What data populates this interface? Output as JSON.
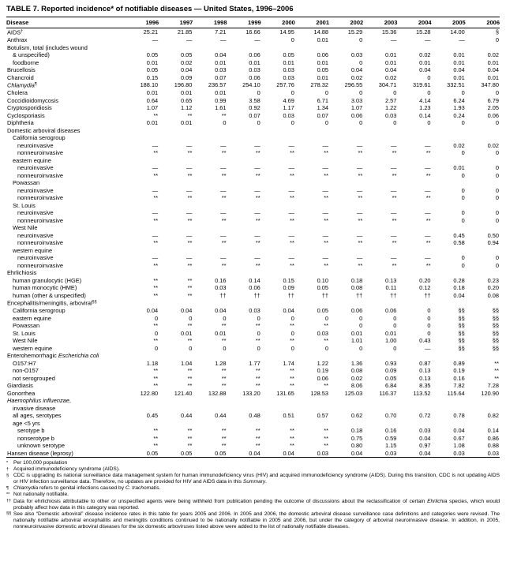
{
  "title": "TABLE 7. Reported incidence* of notifiable diseases — United States, 1996–2006",
  "table": {
    "disease_header": "Disease",
    "year_headers": [
      "1996",
      "1997",
      "1998",
      "1999",
      "2000",
      "2001",
      "2002",
      "2003",
      "2004",
      "2005",
      "2006"
    ],
    "rows": [
      {
        "label": [
          {
            "t": "AIDS"
          },
          {
            "t": "†",
            "sup": true
          }
        ],
        "indent": 0,
        "values": [
          "25.21",
          "21.85",
          "7.21",
          "16.66",
          "14.95",
          "14.88",
          "15.29",
          "15.36",
          "15.28",
          "14.00",
          "§"
        ]
      },
      {
        "label": [
          {
            "t": "Anthrax"
          }
        ],
        "indent": 0,
        "values": [
          "—",
          "—",
          "—",
          "—",
          "0",
          "0.01",
          "0",
          "—",
          "—",
          "—",
          "0"
        ]
      },
      {
        "label": [
          {
            "t": "Botulism, total (includes wound"
          }
        ],
        "indent": 0,
        "values": null
      },
      {
        "label": [
          {
            "t": "& unspecified)"
          }
        ],
        "indent": 1,
        "values": [
          "0.05",
          "0.05",
          "0.04",
          "0.06",
          "0.05",
          "0.06",
          "0.03",
          "0.01",
          "0.02",
          "0.01",
          "0.02"
        ]
      },
      {
        "label": [
          {
            "t": "foodborne"
          }
        ],
        "indent": 1,
        "values": [
          "0.01",
          "0.02",
          "0.01",
          "0.01",
          "0.01",
          "0.01",
          "0",
          "0.01",
          "0.01",
          "0.01",
          "0.01"
        ]
      },
      {
        "label": [
          {
            "t": "Brucellosis"
          }
        ],
        "indent": 0,
        "values": [
          "0.05",
          "0.04",
          "0.03",
          "0.03",
          "0.03",
          "0.05",
          "0.04",
          "0.04",
          "0.04",
          "0.04",
          "0.04"
        ]
      },
      {
        "label": [
          {
            "t": "Chancroid"
          }
        ],
        "indent": 0,
        "values": [
          "0.15",
          "0.09",
          "0.07",
          "0.06",
          "0.03",
          "0.01",
          "0.02",
          "0.02",
          "0",
          "0.01",
          "0.01"
        ]
      },
      {
        "label": [
          {
            "t": "Chlamydia",
            "it": true
          },
          {
            "t": "¶",
            "sup": true
          }
        ],
        "indent": 0,
        "values": [
          "188.10",
          "196.80",
          "236.57",
          "254.10",
          "257.76",
          "278.32",
          "296.55",
          "304.71",
          "319.61",
          "332.51",
          "347.80"
        ]
      },
      {
        "label": [
          {
            "t": "Cholera"
          }
        ],
        "indent": 0,
        "values": [
          "0.01",
          "0.01",
          "0.01",
          "0",
          "0",
          "0",
          "0",
          "0",
          "0",
          "0",
          "0"
        ]
      },
      {
        "label": [
          {
            "t": "Coccidioidomycosis"
          }
        ],
        "indent": 0,
        "values": [
          "0.64",
          "0.65",
          "0.99",
          "3.58",
          "4.69",
          "6.71",
          "3.03",
          "2.57",
          "4.14",
          "6.24",
          "6.79"
        ]
      },
      {
        "label": [
          {
            "t": "Cryptosporidiosis"
          }
        ],
        "indent": 0,
        "values": [
          "1.07",
          "1.12",
          "1.61",
          "0.92",
          "1.17",
          "1.34",
          "1.07",
          "1.22",
          "1.23",
          "1.93",
          "2.05"
        ]
      },
      {
        "label": [
          {
            "t": "Cyclosporiasis"
          }
        ],
        "indent": 0,
        "values": [
          "**",
          "**",
          "**",
          "0.07",
          "0.03",
          "0.07",
          "0.06",
          "0.03",
          "0.14",
          "0.24",
          "0.06"
        ]
      },
      {
        "label": [
          {
            "t": "Diphtheria"
          }
        ],
        "indent": 0,
        "values": [
          "0.01",
          "0.01",
          "0",
          "0",
          "0",
          "0",
          "0",
          "0",
          "0",
          "0",
          "0"
        ]
      },
      {
        "label": [
          {
            "t": "Domestic arboviral diseases"
          }
        ],
        "indent": 0,
        "values": null
      },
      {
        "label": [
          {
            "t": "California serogroup"
          }
        ],
        "indent": 1,
        "values": null
      },
      {
        "label": [
          {
            "t": "neuroinvasive"
          }
        ],
        "indent": 2,
        "values": [
          "—",
          "—",
          "—",
          "—",
          "—",
          "—",
          "—",
          "—",
          "—",
          "0.02",
          "0.02"
        ]
      },
      {
        "label": [
          {
            "t": "nonneuroinvasive"
          }
        ],
        "indent": 2,
        "values": [
          "**",
          "**",
          "**",
          "**",
          "**",
          "**",
          "**",
          "**",
          "**",
          "0",
          "0"
        ]
      },
      {
        "label": [
          {
            "t": "eastern equine"
          }
        ],
        "indent": 1,
        "values": null
      },
      {
        "label": [
          {
            "t": "neuroinvasive"
          }
        ],
        "indent": 2,
        "values": [
          "—",
          "—",
          "—",
          "—",
          "—",
          "—",
          "—",
          "—",
          "—",
          "0.01",
          "0"
        ]
      },
      {
        "label": [
          {
            "t": "nonneuroinvasive"
          }
        ],
        "indent": 2,
        "values": [
          "**",
          "**",
          "**",
          "**",
          "**",
          "**",
          "**",
          "**",
          "**",
          "0",
          "0"
        ]
      },
      {
        "label": [
          {
            "t": "Powassan"
          }
        ],
        "indent": 1,
        "values": null
      },
      {
        "label": [
          {
            "t": "neuroinvasive"
          }
        ],
        "indent": 2,
        "values": [
          "—",
          "—",
          "—",
          "—",
          "—",
          "—",
          "—",
          "—",
          "—",
          "0",
          "0"
        ]
      },
      {
        "label": [
          {
            "t": "nonneuroinvasive"
          }
        ],
        "indent": 2,
        "values": [
          "**",
          "**",
          "**",
          "**",
          "**",
          "**",
          "**",
          "**",
          "**",
          "0",
          "0"
        ]
      },
      {
        "label": [
          {
            "t": "St. Louis"
          }
        ],
        "indent": 1,
        "values": null
      },
      {
        "label": [
          {
            "t": "neuroinvasive"
          }
        ],
        "indent": 2,
        "values": [
          "—",
          "—",
          "—",
          "—",
          "—",
          "—",
          "—",
          "—",
          "—",
          "0",
          "0"
        ]
      },
      {
        "label": [
          {
            "t": "nonneuroinvasive"
          }
        ],
        "indent": 2,
        "values": [
          "**",
          "**",
          "**",
          "**",
          "**",
          "**",
          "**",
          "**",
          "**",
          "0",
          "0"
        ]
      },
      {
        "label": [
          {
            "t": "West Nile"
          }
        ],
        "indent": 1,
        "values": null
      },
      {
        "label": [
          {
            "t": "neuroinvasive"
          }
        ],
        "indent": 2,
        "values": [
          "—",
          "—",
          "—",
          "—",
          "—",
          "—",
          "—",
          "—",
          "—",
          "0.45",
          "0.50"
        ]
      },
      {
        "label": [
          {
            "t": "nonneuroinvasive"
          }
        ],
        "indent": 2,
        "values": [
          "**",
          "**",
          "**",
          "**",
          "**",
          "**",
          "**",
          "**",
          "**",
          "0.58",
          "0.94"
        ]
      },
      {
        "label": [
          {
            "t": "western equine"
          }
        ],
        "indent": 1,
        "values": null
      },
      {
        "label": [
          {
            "t": "neuroinvasive"
          }
        ],
        "indent": 2,
        "values": [
          "—",
          "—",
          "—",
          "—",
          "—",
          "—",
          "—",
          "—",
          "—",
          "0",
          "0"
        ]
      },
      {
        "label": [
          {
            "t": "nonneuroinvasive"
          }
        ],
        "indent": 2,
        "values": [
          "**",
          "**",
          "**",
          "**",
          "**",
          "**",
          "**",
          "**",
          "**",
          "0",
          "0"
        ]
      },
      {
        "label": [
          {
            "t": "Ehrlichiosis"
          }
        ],
        "indent": 0,
        "values": null
      },
      {
        "label": [
          {
            "t": "human granulocytic (HGE)"
          }
        ],
        "indent": 1,
        "values": [
          "**",
          "**",
          "0.16",
          "0.14",
          "0.15",
          "0.10",
          "0.18",
          "0.13",
          "0.20",
          "0.28",
          "0.23"
        ]
      },
      {
        "label": [
          {
            "t": "human monocytic (HME)"
          }
        ],
        "indent": 1,
        "values": [
          "**",
          "**",
          "0.03",
          "0.06",
          "0.09",
          "0.05",
          "0.08",
          "0.11",
          "0.12",
          "0.18",
          "0.20"
        ]
      },
      {
        "label": [
          {
            "t": "human (other & unspecified)"
          }
        ],
        "indent": 1,
        "values": [
          "**",
          "**",
          "††",
          "††",
          "††",
          "††",
          "††",
          "††",
          "††",
          "0.04",
          "0.08"
        ]
      },
      {
        "label": [
          {
            "t": "Encephalitis/meningitis, arboviral"
          },
          {
            "t": "§§",
            "sup": true
          }
        ],
        "indent": 0,
        "values": null
      },
      {
        "label": [
          {
            "t": "California serogroup"
          }
        ],
        "indent": 1,
        "values": [
          "0.04",
          "0.04",
          "0.04",
          "0.03",
          "0.04",
          "0.05",
          "0.06",
          "0.06",
          "0",
          "§§",
          "§§"
        ]
      },
      {
        "label": [
          {
            "t": "eastern equine"
          }
        ],
        "indent": 1,
        "values": [
          "0",
          "0",
          "0",
          "0",
          "0",
          "0",
          "0",
          "0",
          "0",
          "§§",
          "§§"
        ]
      },
      {
        "label": [
          {
            "t": "Powassan"
          }
        ],
        "indent": 1,
        "values": [
          "**",
          "**",
          "**",
          "**",
          "**",
          "**",
          "0",
          "0",
          "0",
          "§§",
          "§§"
        ]
      },
      {
        "label": [
          {
            "t": "St. Louis"
          }
        ],
        "indent": 1,
        "values": [
          "0",
          "0.01",
          "0.01",
          "0",
          "0",
          "0.03",
          "0.01",
          "0.01",
          "0",
          "§§",
          "§§"
        ]
      },
      {
        "label": [
          {
            "t": "West Nile"
          }
        ],
        "indent": 1,
        "values": [
          "**",
          "**",
          "**",
          "**",
          "**",
          "**",
          "1.01",
          "1.00",
          "0.43",
          "§§",
          "§§"
        ]
      },
      {
        "label": [
          {
            "t": "western equine"
          }
        ],
        "indent": 1,
        "values": [
          "0",
          "0",
          "0",
          "0",
          "0",
          "0",
          "0",
          "0",
          "—",
          "§§",
          "§§"
        ]
      },
      {
        "label": [
          {
            "t": "Enterohemorrhagic "
          },
          {
            "t": "Escherichia coli",
            "it": true
          }
        ],
        "indent": 0,
        "values": null
      },
      {
        "label": [
          {
            "t": "O157:H7"
          }
        ],
        "indent": 1,
        "values": [
          "1.18",
          "1.04",
          "1.28",
          "1.77",
          "1.74",
          "1.22",
          "1.36",
          "0.93",
          "0.87",
          "0.89",
          "**"
        ]
      },
      {
        "label": [
          {
            "t": "non-O157"
          }
        ],
        "indent": 1,
        "values": [
          "**",
          "**",
          "**",
          "**",
          "**",
          "0.19",
          "0.08",
          "0.09",
          "0.13",
          "0.19",
          "**"
        ]
      },
      {
        "label": [
          {
            "t": "not serogrouped"
          }
        ],
        "indent": 1,
        "values": [
          "**",
          "**",
          "**",
          "**",
          "**",
          "0.06",
          "0.02",
          "0.05",
          "0.13",
          "0.16",
          "**"
        ]
      },
      {
        "label": [
          {
            "t": "Giardiasis"
          }
        ],
        "indent": 0,
        "values": [
          "**",
          "**",
          "**",
          "**",
          "**",
          "**",
          "8.06",
          "6.84",
          "8.35",
          "7.82",
          "7.28"
        ]
      },
      {
        "label": [
          {
            "t": "Gonorrhea"
          }
        ],
        "indent": 0,
        "values": [
          "122.80",
          "121.40",
          "132.88",
          "133.20",
          "131.65",
          "128.53",
          "125.03",
          "116.37",
          "113.52",
          "115.64",
          "120.90"
        ]
      },
      {
        "label": [
          {
            "t": "Haemophilus influenzae",
            "it": true
          },
          {
            "t": ","
          }
        ],
        "indent": 0,
        "values": null
      },
      {
        "label": [
          {
            "t": "invasive disease"
          }
        ],
        "indent": 1,
        "values": null
      },
      {
        "label": [
          {
            "t": "all ages, serotypes"
          }
        ],
        "indent": 1,
        "values": [
          "0.45",
          "0.44",
          "0.44",
          "0.48",
          "0.51",
          "0.57",
          "0.62",
          "0.70",
          "0.72",
          "0.78",
          "0.82"
        ]
      },
      {
        "label": [
          {
            "t": "age <5 yrs"
          }
        ],
        "indent": 1,
        "values": null
      },
      {
        "label": [
          {
            "t": "serotype b"
          }
        ],
        "indent": 2,
        "values": [
          "**",
          "**",
          "**",
          "**",
          "**",
          "**",
          "0.18",
          "0.16",
          "0.03",
          "0.04",
          "0.14"
        ]
      },
      {
        "label": [
          {
            "t": "nonserotype b"
          }
        ],
        "indent": 2,
        "values": [
          "**",
          "**",
          "**",
          "**",
          "**",
          "**",
          "0.75",
          "0.59",
          "0.04",
          "0.67",
          "0.86"
        ]
      },
      {
        "label": [
          {
            "t": "unknown serotype"
          }
        ],
        "indent": 2,
        "values": [
          "**",
          "**",
          "**",
          "**",
          "**",
          "**",
          "0.80",
          "1.15",
          "0.97",
          "1.08",
          "0.88"
        ]
      },
      {
        "label": [
          {
            "t": "Hansen disease (leprosy)"
          }
        ],
        "indent": 0,
        "values": [
          "0.05",
          "0.05",
          "0.05",
          "0.04",
          "0.04",
          "0.03",
          "0.04",
          "0.03",
          "0.04",
          "0.03",
          "0.03"
        ]
      }
    ]
  },
  "footnotes": [
    {
      "symbol": "*",
      "parts": [
        {
          "t": "Per 100,000 population"
        }
      ]
    },
    {
      "symbol": "†",
      "parts": [
        {
          "t": "Acquired immunodeficiency syndrome (AIDS)."
        }
      ]
    },
    {
      "symbol": "§",
      "parts": [
        {
          "t": "CDC is upgrading its national surveillance data management system for human immunodeficiency virus (HIV) and acquired immunodeficiency syndrome (AIDS). During this transition, CDC is not updating AIDS or HIV infection surveillance data. Therefore, no updates are provided for HIV and AIDS data in this "
        },
        {
          "t": "Summary",
          "it": true
        },
        {
          "t": "."
        }
      ]
    },
    {
      "symbol": "¶",
      "parts": [
        {
          "t": "Chlamydia",
          "it": true
        },
        {
          "t": " refers to genital infections caused by "
        },
        {
          "t": "C. trachomatis",
          "it": true
        },
        {
          "t": "."
        }
      ]
    },
    {
      "symbol": "**",
      "parts": [
        {
          "t": "Not nationally notifiable."
        }
      ]
    },
    {
      "symbol": "††",
      "parts": [
        {
          "t": "Data for ehrlichiosis attributable to other or unspecified agents were being withheld from publication pending the outcome of discussions about the reclassification of certain "
        },
        {
          "t": "Ehrlichia",
          "it": true
        },
        {
          "t": " species, which would probably affect how data in this category was reported."
        }
      ]
    },
    {
      "symbol": "§§",
      "parts": [
        {
          "t": "See also “Domestic arboviral” disease incidence rates in this table for years 2005 and 2006. In 2005 and 2006, the domestic arboviral disease surveillance case definitions and categories were revised. The nationally notifiable arboviral encephalitis and meningitis conditions continued to be nationally notifiable in 2005 and 2006, but under the category of arboviral neuroinvasive disease. In addition, in 2005, nonneuroinvasive domestic arboviral diseases for the six domestic arboviruses listed above were added to the list of nationally notifiable diseases."
        }
      ]
    }
  ]
}
